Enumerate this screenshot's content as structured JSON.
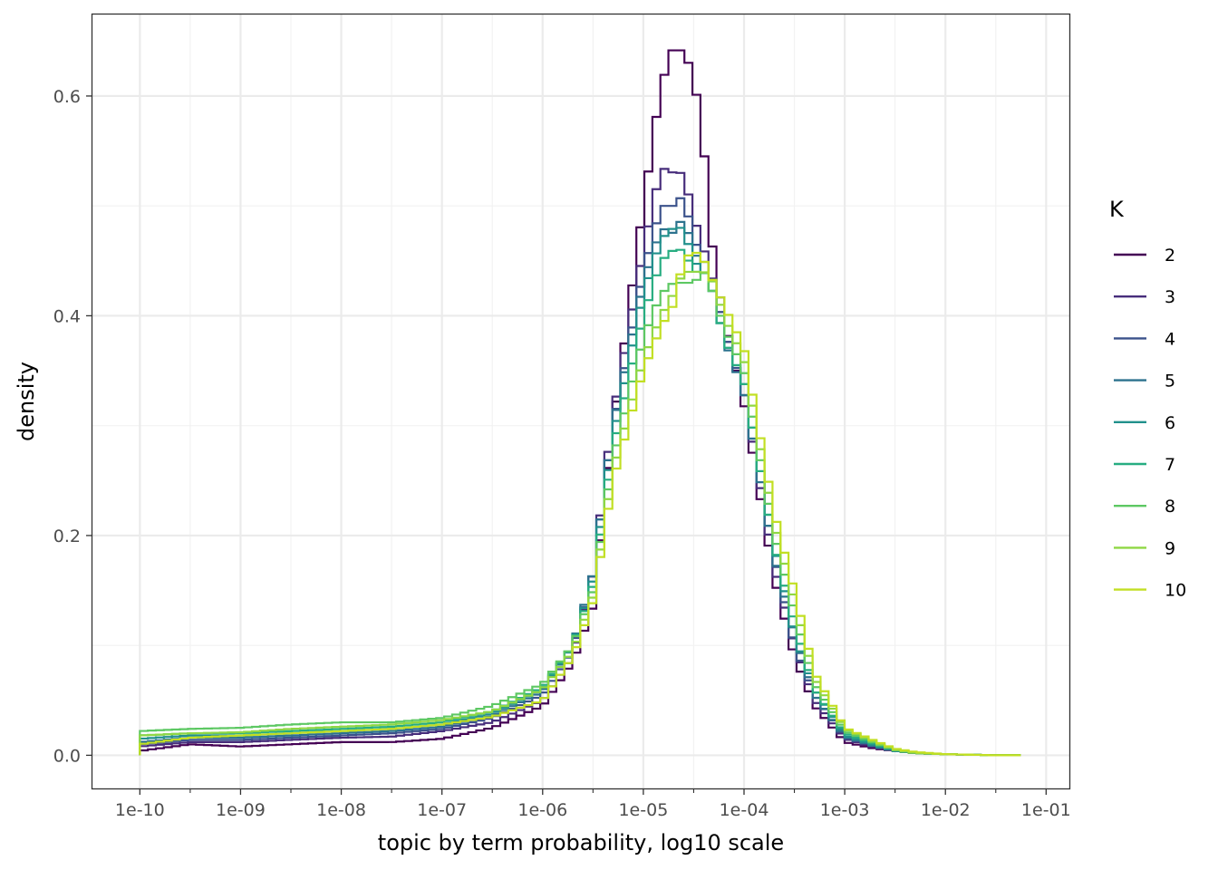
{
  "chart_data": {
    "type": "line",
    "style": "step-histogram",
    "title": "",
    "xlabel": "topic by term probability, log10 scale",
    "ylabel": "density",
    "x_scale": "log10",
    "xlim": [
      "1e-10",
      "1e-01"
    ],
    "ylim": [
      -0.031,
      0.675
    ],
    "grid": true,
    "legend_position": "right",
    "legend_title": "K",
    "x_ticks": [
      "1e-10",
      "1e-09",
      "1e-08",
      "1e-07",
      "1e-06",
      "1e-05",
      "1e-04",
      "1e-03",
      "1e-02",
      "1e-01"
    ],
    "y_ticks": [
      "0.0",
      "0.2",
      "0.4",
      "0.6"
    ],
    "x": [
      "1e-10",
      "3.16e-10",
      "1e-09",
      "3.16e-09",
      "1e-08",
      "3.16e-08",
      "1e-07",
      "3.16e-07",
      "1e-06",
      "2e-06",
      "3.16e-06",
      "5e-06",
      "1e-05",
      "1.5e-05",
      "2e-05",
      "2.5e-05",
      "3.16e-05",
      "4e-05",
      "5e-05",
      "6.3e-05",
      "1e-04",
      "2e-04",
      "3.16e-04",
      "5e-04",
      "1e-03",
      "2e-03",
      "3.16e-03",
      "5e-03",
      "1e-02",
      "3.16e-02",
      "5.6e-02"
    ],
    "series": [
      {
        "name": "2",
        "color": "#440154",
        "values": [
          0.004,
          0.01,
          0.008,
          0.01,
          0.012,
          0.012,
          0.015,
          0.025,
          0.045,
          0.085,
          0.135,
          0.3,
          0.5,
          0.61,
          0.645,
          0.64,
          0.62,
          0.55,
          0.45,
          0.4,
          0.32,
          0.16,
          0.09,
          0.045,
          0.012,
          0.006,
          0.004,
          0.002,
          0.001,
          0.0,
          0.0
        ]
      },
      {
        "name": "3",
        "color": "#472D7B",
        "values": [
          0.008,
          0.012,
          0.012,
          0.014,
          0.016,
          0.017,
          0.022,
          0.03,
          0.05,
          0.09,
          0.165,
          0.31,
          0.46,
          0.535,
          0.53,
          0.53,
          0.49,
          0.46,
          0.43,
          0.39,
          0.33,
          0.17,
          0.1,
          0.05,
          0.015,
          0.007,
          0.004,
          0.002,
          0.001,
          0.0,
          0.0
        ]
      },
      {
        "name": "4",
        "color": "#3B528B",
        "values": [
          0.01,
          0.014,
          0.014,
          0.016,
          0.018,
          0.02,
          0.024,
          0.034,
          0.055,
          0.095,
          0.165,
          0.3,
          0.44,
          0.5,
          0.5,
          0.51,
          0.47,
          0.45,
          0.43,
          0.39,
          0.33,
          0.18,
          0.1,
          0.055,
          0.016,
          0.008,
          0.004,
          0.002,
          0.001,
          0.0,
          0.0
        ]
      },
      {
        "name": "5",
        "color": "#2C728E",
        "values": [
          0.012,
          0.016,
          0.016,
          0.018,
          0.02,
          0.022,
          0.026,
          0.036,
          0.058,
          0.1,
          0.165,
          0.3,
          0.43,
          0.48,
          0.475,
          0.49,
          0.46,
          0.44,
          0.42,
          0.38,
          0.33,
          0.18,
          0.11,
          0.055,
          0.017,
          0.008,
          0.004,
          0.002,
          0.001,
          0.0,
          0.0
        ]
      },
      {
        "name": "6",
        "color": "#21908C",
        "values": [
          0.015,
          0.018,
          0.018,
          0.02,
          0.022,
          0.024,
          0.028,
          0.038,
          0.06,
          0.1,
          0.16,
          0.29,
          0.42,
          0.47,
          0.48,
          0.48,
          0.45,
          0.44,
          0.42,
          0.38,
          0.34,
          0.19,
          0.11,
          0.06,
          0.018,
          0.009,
          0.004,
          0.002,
          0.001,
          0.0,
          0.0
        ]
      },
      {
        "name": "7",
        "color": "#27AD81",
        "values": [
          0.018,
          0.02,
          0.02,
          0.022,
          0.024,
          0.026,
          0.03,
          0.04,
          0.062,
          0.1,
          0.155,
          0.28,
          0.4,
          0.45,
          0.46,
          0.46,
          0.44,
          0.44,
          0.42,
          0.38,
          0.34,
          0.19,
          0.12,
          0.06,
          0.02,
          0.01,
          0.005,
          0.002,
          0.001,
          0.0,
          0.0
        ]
      },
      {
        "name": "8",
        "color": "#5DC863",
        "values": [
          0.022,
          0.024,
          0.025,
          0.028,
          0.03,
          0.03,
          0.034,
          0.045,
          0.065,
          0.1,
          0.15,
          0.27,
          0.38,
          0.42,
          0.43,
          0.43,
          0.43,
          0.44,
          0.42,
          0.39,
          0.35,
          0.2,
          0.13,
          0.065,
          0.022,
          0.011,
          0.005,
          0.002,
          0.001,
          0.0,
          0.0
        ]
      },
      {
        "name": "9",
        "color": "#8FD744",
        "values": [
          0.018,
          0.02,
          0.021,
          0.024,
          0.026,
          0.028,
          0.032,
          0.04,
          0.06,
          0.095,
          0.145,
          0.26,
          0.36,
          0.4,
          0.42,
          0.44,
          0.44,
          0.44,
          0.43,
          0.4,
          0.36,
          0.21,
          0.14,
          0.07,
          0.024,
          0.012,
          0.005,
          0.002,
          0.001,
          0.0,
          0.0
        ]
      },
      {
        "name": "10",
        "color": "#C2DF23",
        "values": [
          0.01,
          0.016,
          0.018,
          0.02,
          0.022,
          0.024,
          0.028,
          0.035,
          0.05,
          0.09,
          0.14,
          0.25,
          0.35,
          0.39,
          0.41,
          0.45,
          0.46,
          0.45,
          0.43,
          0.41,
          0.37,
          0.22,
          0.15,
          0.075,
          0.025,
          0.013,
          0.006,
          0.003,
          0.001,
          0.0,
          0.0
        ]
      }
    ]
  }
}
